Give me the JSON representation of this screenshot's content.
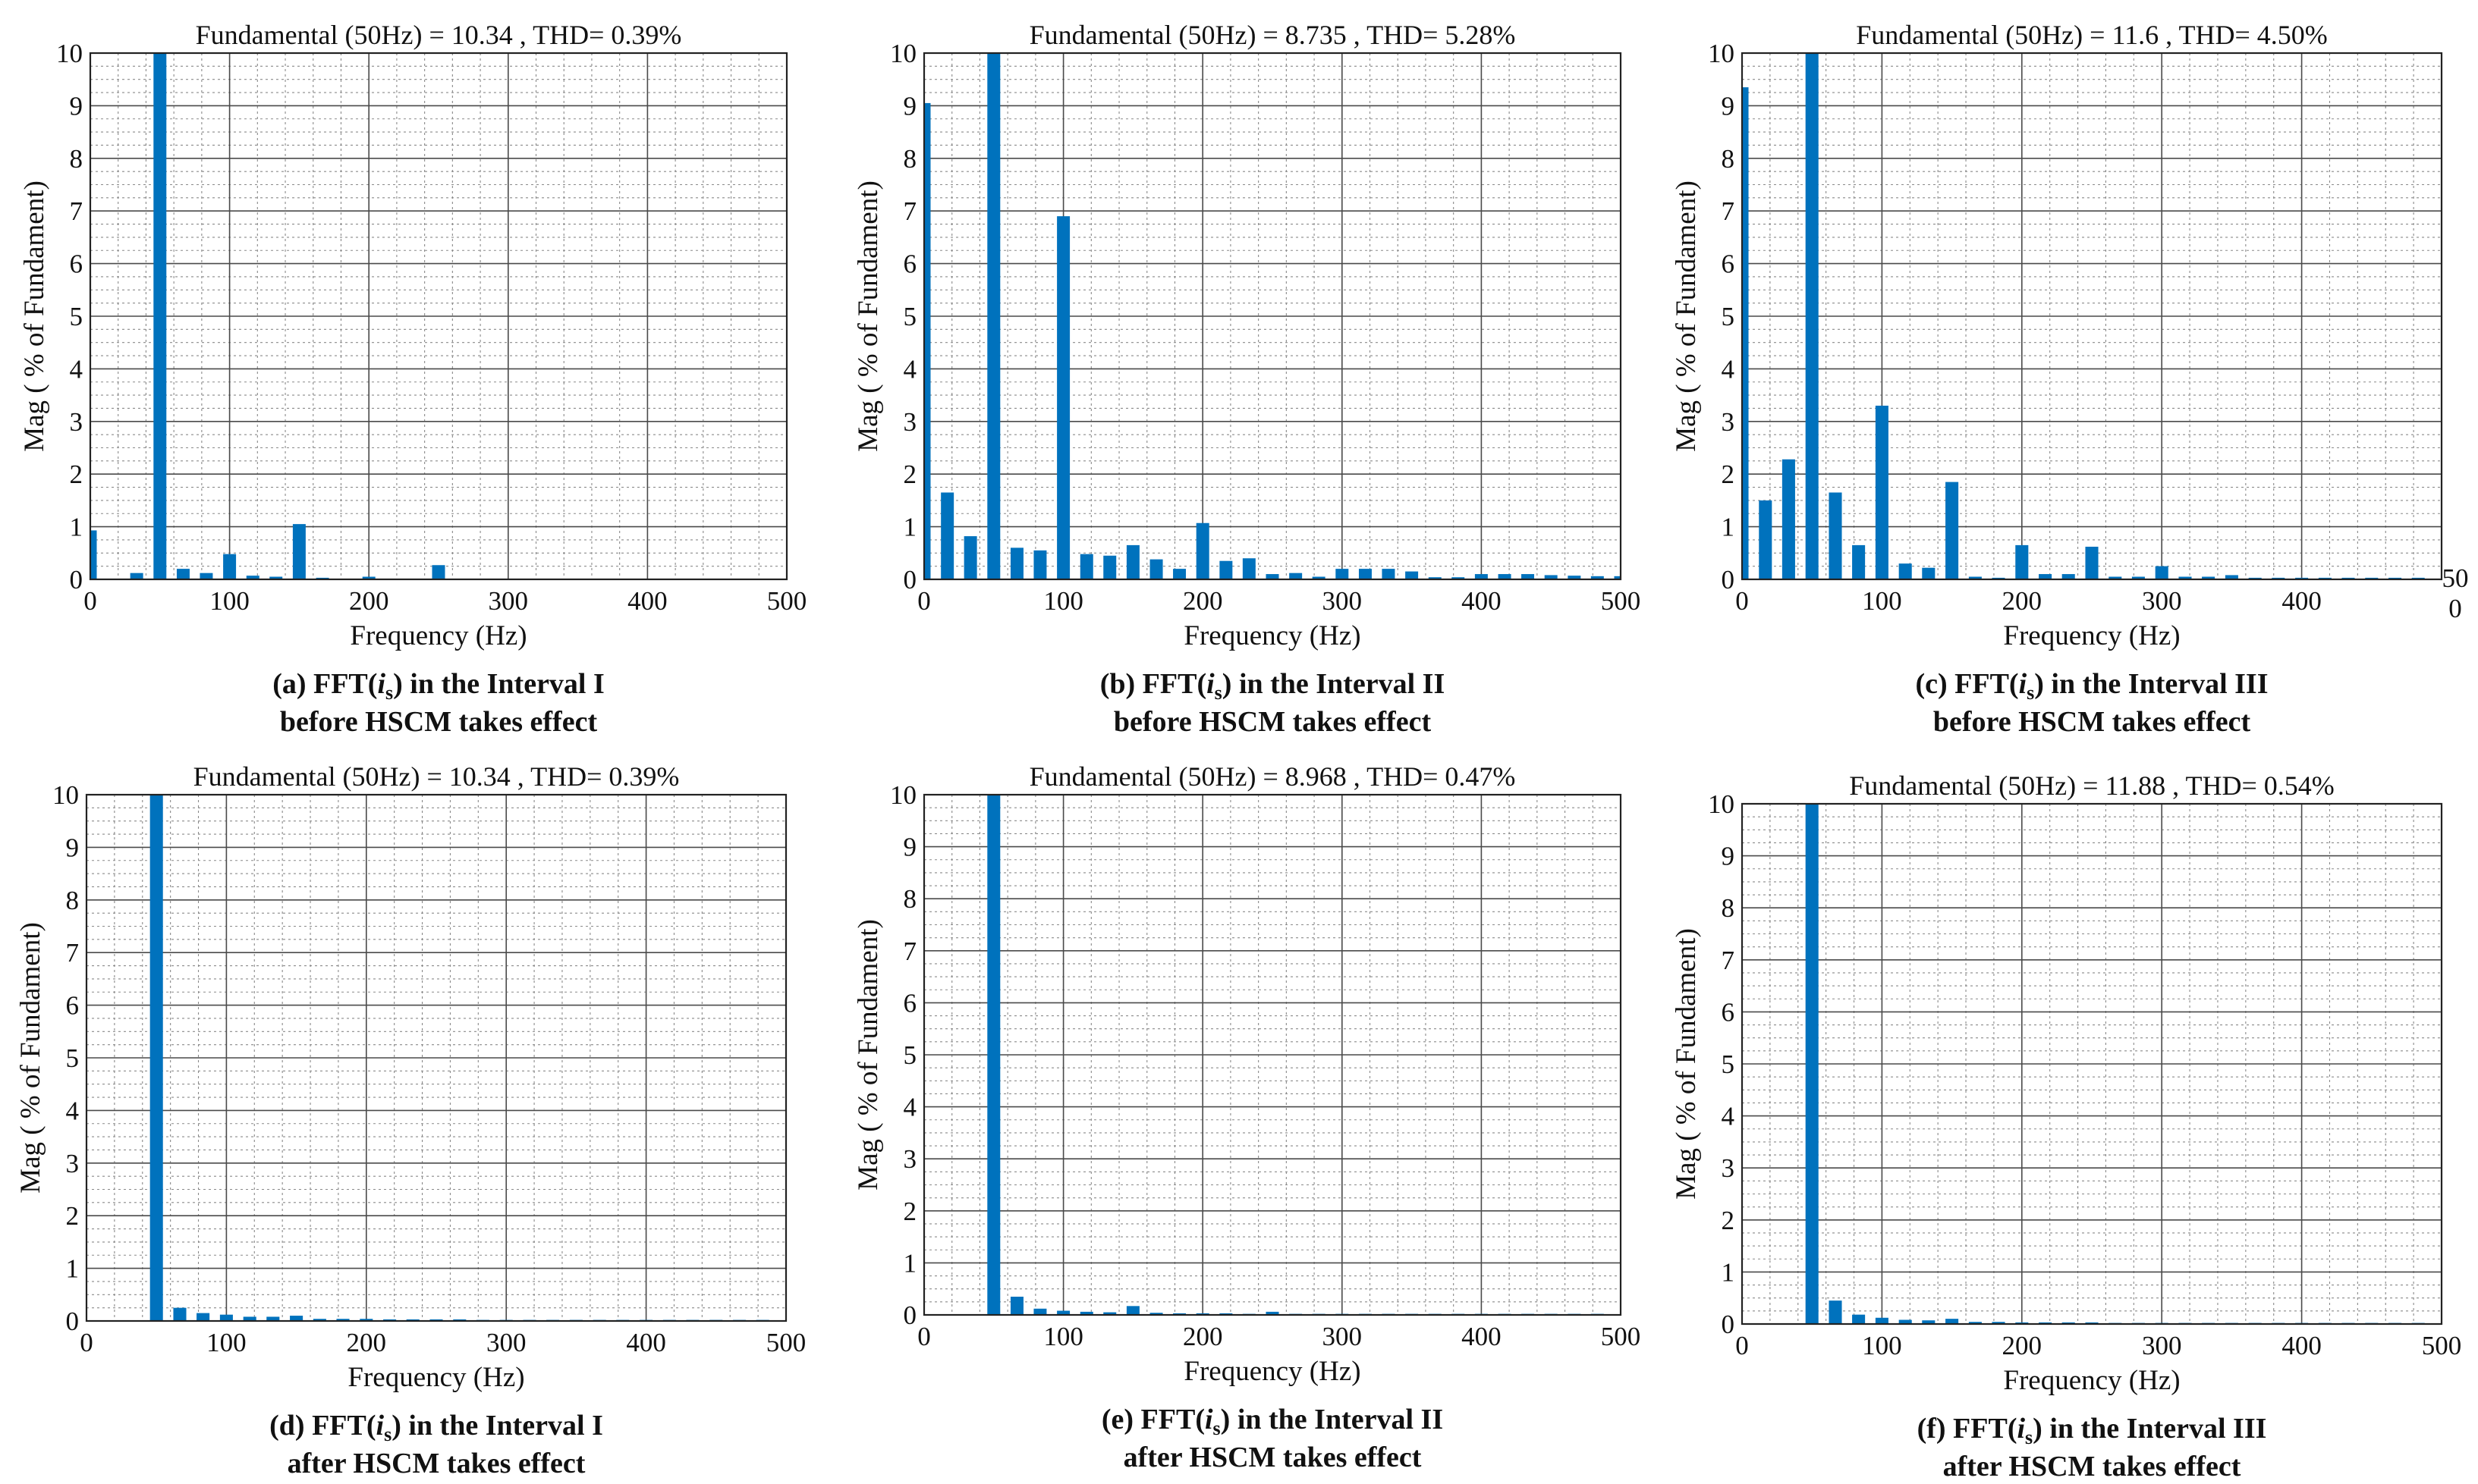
{
  "chart_data": [
    {
      "id": "a",
      "type": "bar",
      "title": "Fundamental (50Hz) = 10.34 , THD= 0.39%",
      "xlabel": "Frequency (Hz)",
      "ylabel": "Mag ( % of  Fundament)",
      "xlim": [
        0,
        500
      ],
      "ylim": [
        0,
        10
      ],
      "xticks": [
        "0",
        "100",
        "200",
        "300",
        "400",
        "500"
      ],
      "yticks": [
        "0",
        "1",
        "2",
        "3",
        "4",
        "5",
        "6",
        "7",
        "8",
        "9",
        "10"
      ],
      "grid": true,
      "bar_color": "#0072BD",
      "x": [
        0,
        33.3,
        50,
        66.7,
        83.3,
        100,
        116.7,
        133.3,
        150,
        166.7,
        200,
        250
      ],
      "values": [
        0.93,
        0.12,
        10,
        0.2,
        0.12,
        0.48,
        0.07,
        0.05,
        1.05,
        0.03,
        0.05,
        0.27
      ],
      "caption": {
        "prefix": "(a) FFT(",
        "var": "i",
        "sub": "s",
        "suffix": ") in the Interval I",
        "line2": "before HSCM takes effect"
      }
    },
    {
      "id": "b",
      "type": "bar",
      "title": "Fundamental (50Hz) = 8.735 , THD= 5.28%",
      "xlabel": "Frequency (Hz)",
      "ylabel": "Mag ( % of  Fundament)",
      "xlim": [
        0,
        500
      ],
      "ylim": [
        0,
        10
      ],
      "xticks": [
        "0",
        "100",
        "200",
        "300",
        "400",
        "500"
      ],
      "yticks": [
        "0",
        "1",
        "2",
        "3",
        "4",
        "5",
        "6",
        "7",
        "8",
        "9",
        "10"
      ],
      "grid": true,
      "bar_color": "#0072BD",
      "x": [
        0,
        16.7,
        33.3,
        50,
        66.7,
        83.3,
        100,
        116.7,
        133.3,
        150,
        166.7,
        183.3,
        200,
        216.7,
        233.3,
        250,
        266.7,
        283.3,
        300,
        316.7,
        333.3,
        350,
        366.7,
        383.3,
        400,
        416.7,
        433.3,
        450,
        466.7,
        483.3,
        500
      ],
      "values": [
        9.05,
        1.65,
        0.82,
        10,
        0.6,
        0.55,
        6.9,
        0.48,
        0.45,
        0.65,
        0.38,
        0.2,
        1.07,
        0.35,
        0.4,
        0.1,
        0.12,
        0.05,
        0.2,
        0.2,
        0.2,
        0.15,
        0.04,
        0.04,
        0.1,
        0.1,
        0.1,
        0.08,
        0.07,
        0.06,
        0.06
      ],
      "caption": {
        "prefix": "(b) FFT(",
        "var": "i",
        "sub": "s",
        "suffix": ") in the Interval II",
        "line2": "before HSCM takes effect"
      }
    },
    {
      "id": "c",
      "type": "bar",
      "title": "Fundamental (50Hz) = 11.6 , THD= 4.50%",
      "xlabel": "Frequency (Hz)",
      "ylabel": "Mag ( % of  Fundament)",
      "xlim": [
        0,
        500
      ],
      "ylim": [
        0,
        10
      ],
      "xticks": [
        "0",
        "100",
        "200",
        "300",
        "400",
        "50\n0"
      ],
      "yticks": [
        "0",
        "1",
        "2",
        "3",
        "4",
        "5",
        "6",
        "7",
        "8",
        "9",
        "10"
      ],
      "grid": true,
      "bar_color": "#0072BD",
      "x": [
        0,
        16.7,
        33.3,
        50,
        66.7,
        83.3,
        100,
        116.7,
        133.3,
        150,
        166.7,
        183.3,
        200,
        216.7,
        233.3,
        250,
        266.7,
        283.3,
        300,
        316.7,
        333.3,
        350,
        366.7,
        383.3,
        400,
        416.7,
        433.3,
        450,
        466.7,
        483.3
      ],
      "values": [
        9.35,
        1.5,
        2.28,
        10,
        1.65,
        0.65,
        3.3,
        0.3,
        0.22,
        1.85,
        0.05,
        0.03,
        0.65,
        0.1,
        0.1,
        0.62,
        0.05,
        0.05,
        0.25,
        0.05,
        0.05,
        0.08,
        0.03,
        0.03,
        0.03,
        0.03,
        0.03,
        0.03,
        0.03,
        0.03
      ],
      "caption": {
        "prefix": "(c) FFT(",
        "var": "i",
        "sub": "s",
        "suffix": ") in the Interval III",
        "line2": "before HSCM takes effect"
      }
    },
    {
      "id": "d",
      "type": "bar",
      "title": "Fundamental (50Hz) = 10.34 , THD= 0.39%",
      "xlabel": "Frequency (Hz)",
      "ylabel": "Mag ( % of  Fundament)",
      "xlim": [
        0,
        500
      ],
      "ylim": [
        0,
        10
      ],
      "xticks": [
        "0",
        "100",
        "200",
        "300",
        "400",
        "500"
      ],
      "yticks": [
        "0",
        "1",
        "2",
        "3",
        "4",
        "5",
        "6",
        "7",
        "8",
        "9",
        "10"
      ],
      "grid": true,
      "bar_color": "#0072BD",
      "x": [
        50,
        66.7,
        83.3,
        100,
        116.7,
        133.3,
        150,
        166.7,
        183.3,
        200,
        216.7,
        233.3,
        250,
        266.7,
        283.3,
        300,
        316.7,
        333.3,
        350,
        366.7,
        383.3,
        400,
        416.7,
        433.3,
        450,
        466.7,
        483.3
      ],
      "values": [
        10,
        0.25,
        0.15,
        0.12,
        0.08,
        0.08,
        0.1,
        0.04,
        0.04,
        0.04,
        0.03,
        0.03,
        0.03,
        0.03,
        0.02,
        0.02,
        0.02,
        0.02,
        0.02,
        0.02,
        0.02,
        0.02,
        0.02,
        0.02,
        0.02,
        0.02,
        0.02
      ],
      "caption": {
        "prefix": "(d) FFT(",
        "var": "i",
        "sub": "s",
        "suffix": ") in the Interval I",
        "line2": "after HSCM takes effect"
      }
    },
    {
      "id": "e",
      "type": "bar",
      "title": "Fundamental (50Hz) = 8.968 , THD= 0.47%",
      "xlabel": "Frequency (Hz)",
      "ylabel": "Mag ( % of  Fundament)",
      "xlim": [
        0,
        500
      ],
      "ylim": [
        0,
        10
      ],
      "xticks": [
        "0",
        "100",
        "200",
        "300",
        "400",
        "500"
      ],
      "yticks": [
        "0",
        "1",
        "2",
        "3",
        "4",
        "5",
        "6",
        "7",
        "8",
        "9",
        "10"
      ],
      "grid": true,
      "bar_color": "#0072BD",
      "x": [
        50,
        66.7,
        83.3,
        100,
        116.7,
        133.3,
        150,
        166.7,
        183.3,
        200,
        216.7,
        233.3,
        250,
        266.7,
        283.3,
        300,
        316.7,
        333.3,
        350,
        366.7,
        383.3,
        400,
        416.7,
        433.3,
        450,
        466.7,
        483.3
      ],
      "values": [
        10,
        0.35,
        0.12,
        0.08,
        0.06,
        0.05,
        0.17,
        0.04,
        0.03,
        0.03,
        0.03,
        0.02,
        0.06,
        0.02,
        0.02,
        0.02,
        0.02,
        0.02,
        0.02,
        0.02,
        0.02,
        0.02,
        0.02,
        0.02,
        0.02,
        0.02,
        0.02
      ],
      "caption": {
        "prefix": "(e) FFT(",
        "var": "i",
        "sub": "s",
        "suffix": ") in the Interval II",
        "line2": "after HSCM takes effect"
      }
    },
    {
      "id": "f",
      "type": "bar",
      "title": "Fundamental (50Hz) = 11.88 , THD= 0.54%",
      "xlabel": "Frequency (Hz)",
      "ylabel": "Mag ( % of  Fundament)",
      "xlim": [
        0,
        500
      ],
      "ylim": [
        0,
        10
      ],
      "xticks": [
        "0",
        "100",
        "200",
        "300",
        "400",
        "500"
      ],
      "yticks": [
        "0",
        "1",
        "2",
        "3",
        "4",
        "5",
        "6",
        "7",
        "8",
        "9",
        "10"
      ],
      "grid": true,
      "bar_color": "#0072BD",
      "x": [
        50,
        66.7,
        83.3,
        100,
        116.7,
        133.3,
        150,
        166.7,
        183.3,
        200,
        216.7,
        233.3,
        250,
        266.7,
        283.3,
        300,
        316.7,
        333.3,
        350,
        366.7,
        383.3,
        400,
        416.7,
        433.3,
        450,
        466.7,
        483.3
      ],
      "values": [
        10,
        0.45,
        0.18,
        0.12,
        0.08,
        0.07,
        0.1,
        0.04,
        0.04,
        0.03,
        0.03,
        0.03,
        0.03,
        0.02,
        0.02,
        0.02,
        0.02,
        0.02,
        0.02,
        0.02,
        0.02,
        0.02,
        0.02,
        0.02,
        0.02,
        0.02,
        0.02
      ],
      "caption": {
        "prefix": "(f) FFT(",
        "var": "i",
        "sub": "s",
        "suffix": ") in the Interval III",
        "line2": "after HSCM takes effect"
      }
    }
  ]
}
